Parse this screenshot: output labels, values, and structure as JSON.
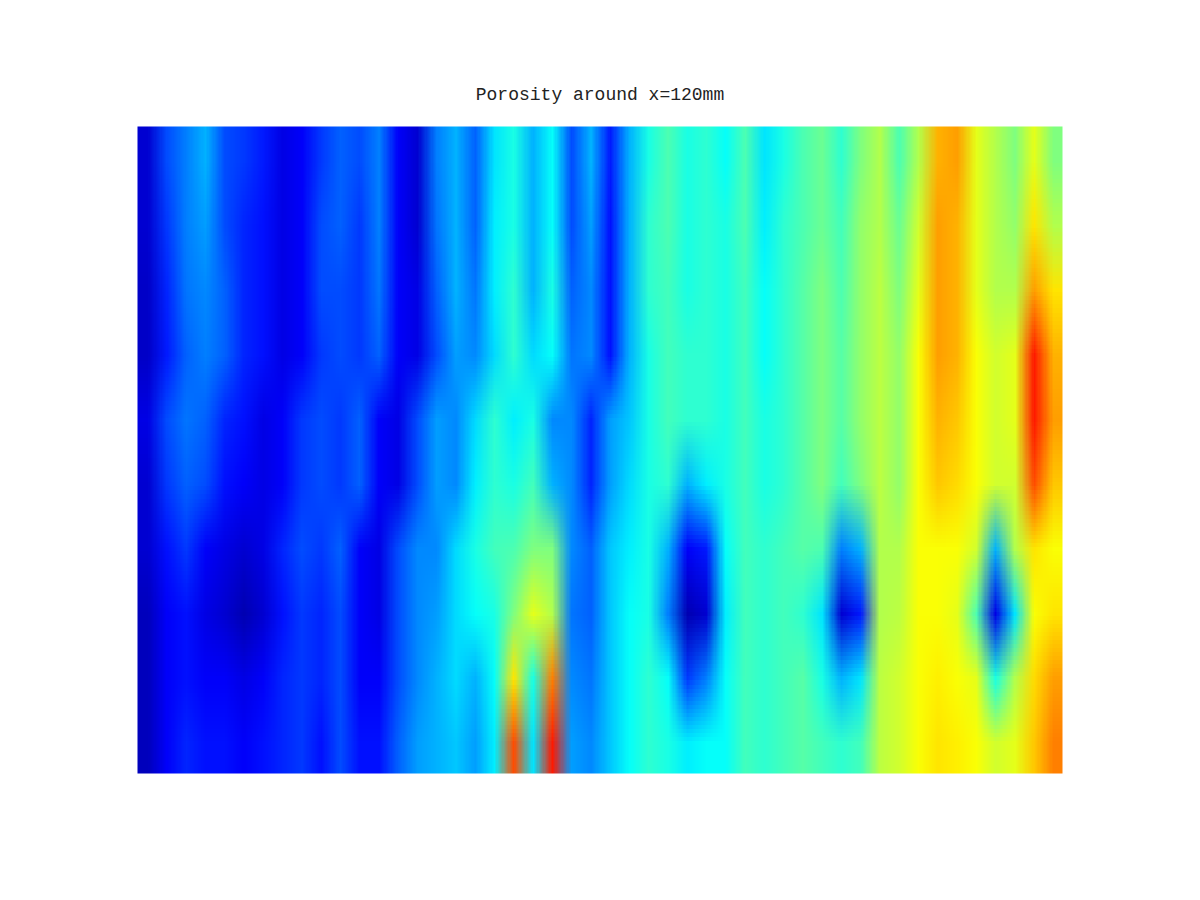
{
  "chart_data": {
    "type": "heatmap",
    "title": "Porosity around x=120mm",
    "tick_labels": false,
    "zlim": [
      0,
      1
    ],
    "cells": [
      [
        0.08,
        0.2,
        0.25,
        0.3,
        0.2,
        0.18,
        0.15,
        0.1,
        0.12,
        0.18,
        0.22,
        0.2,
        0.25,
        0.12,
        0.08,
        0.25,
        0.3,
        0.22,
        0.35,
        0.4,
        0.3,
        0.38,
        0.2,
        0.3,
        0.15,
        0.3,
        0.4,
        0.45,
        0.4,
        0.42,
        0.38,
        0.45,
        0.35,
        0.4,
        0.45,
        0.48,
        0.42,
        0.5,
        0.55,
        0.45,
        0.55,
        0.7,
        0.72,
        0.6,
        0.55,
        0.5,
        0.6,
        0.5
      ],
      [
        0.08,
        0.18,
        0.25,
        0.28,
        0.2,
        0.16,
        0.14,
        0.1,
        0.12,
        0.2,
        0.22,
        0.18,
        0.25,
        0.12,
        0.08,
        0.24,
        0.3,
        0.22,
        0.36,
        0.4,
        0.3,
        0.38,
        0.2,
        0.28,
        0.14,
        0.3,
        0.42,
        0.45,
        0.4,
        0.42,
        0.4,
        0.45,
        0.36,
        0.42,
        0.45,
        0.48,
        0.44,
        0.52,
        0.55,
        0.48,
        0.58,
        0.72,
        0.7,
        0.6,
        0.55,
        0.52,
        0.65,
        0.55
      ],
      [
        0.07,
        0.16,
        0.24,
        0.26,
        0.22,
        0.16,
        0.14,
        0.1,
        0.12,
        0.2,
        0.2,
        0.18,
        0.24,
        0.12,
        0.1,
        0.22,
        0.3,
        0.24,
        0.36,
        0.42,
        0.3,
        0.4,
        0.22,
        0.26,
        0.14,
        0.3,
        0.42,
        0.44,
        0.4,
        0.42,
        0.4,
        0.44,
        0.38,
        0.42,
        0.46,
        0.5,
        0.45,
        0.52,
        0.56,
        0.5,
        0.6,
        0.72,
        0.7,
        0.6,
        0.55,
        0.55,
        0.72,
        0.65
      ],
      [
        0.07,
        0.15,
        0.22,
        0.25,
        0.22,
        0.16,
        0.14,
        0.1,
        0.12,
        0.18,
        0.2,
        0.18,
        0.22,
        0.12,
        0.1,
        0.2,
        0.28,
        0.26,
        0.34,
        0.42,
        0.34,
        0.38,
        0.24,
        0.26,
        0.14,
        0.3,
        0.4,
        0.44,
        0.42,
        0.42,
        0.4,
        0.44,
        0.38,
        0.42,
        0.46,
        0.5,
        0.46,
        0.52,
        0.56,
        0.52,
        0.62,
        0.72,
        0.7,
        0.62,
        0.58,
        0.6,
        0.85,
        0.7
      ],
      [
        0.1,
        0.2,
        0.24,
        0.22,
        0.16,
        0.14,
        0.1,
        0.12,
        0.18,
        0.2,
        0.18,
        0.22,
        0.12,
        0.1,
        0.2,
        0.28,
        0.26,
        0.34,
        0.42,
        0.36,
        0.4,
        0.26,
        0.26,
        0.16,
        0.28,
        0.32,
        0.4,
        0.44,
        0.42,
        0.42,
        0.4,
        0.44,
        0.4,
        0.42,
        0.46,
        0.5,
        0.46,
        0.52,
        0.56,
        0.52,
        0.62,
        0.7,
        0.68,
        0.62,
        0.58,
        0.6,
        0.85,
        0.72
      ],
      [
        0.08,
        0.18,
        0.22,
        0.2,
        0.14,
        0.12,
        0.1,
        0.12,
        0.18,
        0.2,
        0.18,
        0.22,
        0.12,
        0.1,
        0.2,
        0.28,
        0.26,
        0.36,
        0.42,
        0.4,
        0.44,
        0.3,
        0.26,
        0.16,
        0.28,
        0.34,
        0.4,
        0.42,
        0.3,
        0.36,
        0.4,
        0.44,
        0.4,
        0.42,
        0.46,
        0.5,
        0.44,
        0.5,
        0.56,
        0.52,
        0.62,
        0.68,
        0.66,
        0.62,
        0.58,
        0.58,
        0.8,
        0.68
      ],
      [
        0.08,
        0.14,
        0.18,
        0.12,
        0.1,
        0.08,
        0.1,
        0.16,
        0.2,
        0.18,
        0.22,
        0.12,
        0.1,
        0.2,
        0.26,
        0.26,
        0.34,
        0.4,
        0.44,
        0.45,
        0.5,
        0.5,
        0.26,
        0.22,
        0.32,
        0.36,
        0.4,
        0.3,
        0.12,
        0.15,
        0.38,
        0.44,
        0.42,
        0.44,
        0.46,
        0.45,
        0.25,
        0.3,
        0.55,
        0.55,
        0.62,
        0.62,
        0.62,
        0.58,
        0.3,
        0.55,
        0.65,
        0.62
      ],
      [
        0.06,
        0.12,
        0.14,
        0.1,
        0.08,
        0.05,
        0.08,
        0.14,
        0.18,
        0.16,
        0.2,
        0.12,
        0.1,
        0.2,
        0.26,
        0.28,
        0.34,
        0.38,
        0.4,
        0.5,
        0.6,
        0.55,
        0.24,
        0.22,
        0.32,
        0.38,
        0.4,
        0.25,
        0.05,
        0.08,
        0.36,
        0.44,
        0.42,
        0.44,
        0.42,
        0.35,
        0.08,
        0.15,
        0.55,
        0.56,
        0.62,
        0.62,
        0.6,
        0.45,
        0.1,
        0.35,
        0.62,
        0.65
      ],
      [
        0.06,
        0.12,
        0.14,
        0.12,
        0.12,
        0.1,
        0.12,
        0.16,
        0.18,
        0.16,
        0.2,
        0.12,
        0.12,
        0.2,
        0.26,
        0.3,
        0.34,
        0.3,
        0.38,
        0.65,
        0.4,
        0.75,
        0.26,
        0.24,
        0.32,
        0.38,
        0.42,
        0.38,
        0.18,
        0.25,
        0.38,
        0.44,
        0.42,
        0.44,
        0.46,
        0.4,
        0.3,
        0.35,
        0.56,
        0.58,
        0.62,
        0.64,
        0.62,
        0.6,
        0.4,
        0.55,
        0.66,
        0.72
      ],
      [
        0.06,
        0.12,
        0.16,
        0.14,
        0.14,
        0.12,
        0.14,
        0.16,
        0.18,
        0.14,
        0.2,
        0.14,
        0.14,
        0.22,
        0.28,
        0.3,
        0.32,
        0.28,
        0.36,
        0.8,
        0.35,
        0.85,
        0.28,
        0.26,
        0.32,
        0.38,
        0.42,
        0.4,
        0.36,
        0.38,
        0.38,
        0.44,
        0.42,
        0.44,
        0.46,
        0.44,
        0.42,
        0.44,
        0.56,
        0.58,
        0.62,
        0.65,
        0.64,
        0.62,
        0.58,
        0.6,
        0.68,
        0.75
      ]
    ]
  }
}
